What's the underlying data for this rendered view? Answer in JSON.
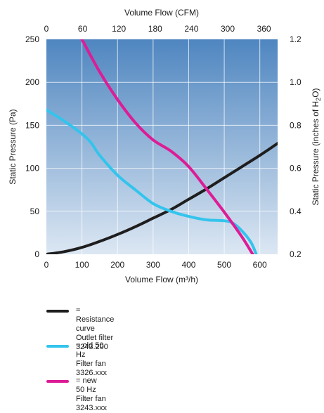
{
  "chart_data": {
    "type": "line",
    "title": "",
    "x_top_label": "Volume Flow (CFM)",
    "x_top_ticks": [
      "0",
      "60",
      "120",
      "180",
      "240",
      "300",
      "360"
    ],
    "xlabel": "Volume Flow (m³/h)",
    "x_ticks": [
      "0",
      "100",
      "200",
      "300",
      "400",
      "500",
      "600"
    ],
    "ylabel": "Static Pressure (Pa)",
    "y_ticks": [
      "0",
      "50",
      "100",
      "150",
      "200",
      "250"
    ],
    "y_right_label_parts": [
      "Static Pressure (inches of H",
      "2",
      "O)"
    ],
    "y_right_ticks": [
      "1.2",
      "1.0",
      "0.8",
      "0.6",
      "0.4",
      "0.2"
    ],
    "xlim": [
      0,
      650
    ],
    "ylim": [
      0,
      250
    ],
    "background_gradient": [
      "#4f86c0",
      "#dce7f3"
    ],
    "series": [
      {
        "key": "resistance",
        "color": "#1e1e1e",
        "points": [
          [
            0,
            0
          ],
          [
            50,
            3
          ],
          [
            100,
            8
          ],
          [
            150,
            15
          ],
          [
            200,
            23
          ],
          [
            250,
            32
          ],
          [
            300,
            42
          ],
          [
            350,
            52
          ],
          [
            400,
            64
          ],
          [
            450,
            76
          ],
          [
            500,
            89
          ],
          [
            550,
            102
          ],
          [
            600,
            115
          ],
          [
            650,
            129
          ]
        ]
      },
      {
        "key": "old",
        "color": "#33c4ec",
        "points": [
          [
            0,
            168
          ],
          [
            50,
            155
          ],
          [
            100,
            140
          ],
          [
            125,
            130
          ],
          [
            150,
            115
          ],
          [
            200,
            92
          ],
          [
            250,
            75
          ],
          [
            300,
            59
          ],
          [
            350,
            50
          ],
          [
            400,
            44
          ],
          [
            450,
            40
          ],
          [
            500,
            39
          ],
          [
            525,
            36
          ],
          [
            550,
            27
          ],
          [
            575,
            14
          ],
          [
            590,
            0
          ]
        ]
      },
      {
        "key": "new",
        "color": "#dd1c96",
        "points": [
          [
            100,
            250
          ],
          [
            150,
            212
          ],
          [
            200,
            180
          ],
          [
            250,
            153
          ],
          [
            300,
            133
          ],
          [
            350,
            120
          ],
          [
            400,
            102
          ],
          [
            450,
            76
          ],
          [
            500,
            49
          ],
          [
            550,
            20
          ],
          [
            580,
            0
          ]
        ]
      }
    ],
    "legend": [
      {
        "key": "resistance",
        "color": "#1e1e1e",
        "line1": "= Resistance curve",
        "line2": "Outlet filter 3243.200"
      },
      {
        "key": "old",
        "color": "#33c4ec",
        "line1": "= old 50 Hz",
        "line2": "Filter fan 3326.xxx"
      },
      {
        "key": "new",
        "color": "#dd1c96",
        "line1": "= new 50 Hz",
        "line2": "Filter fan 3243.xxx"
      }
    ]
  }
}
